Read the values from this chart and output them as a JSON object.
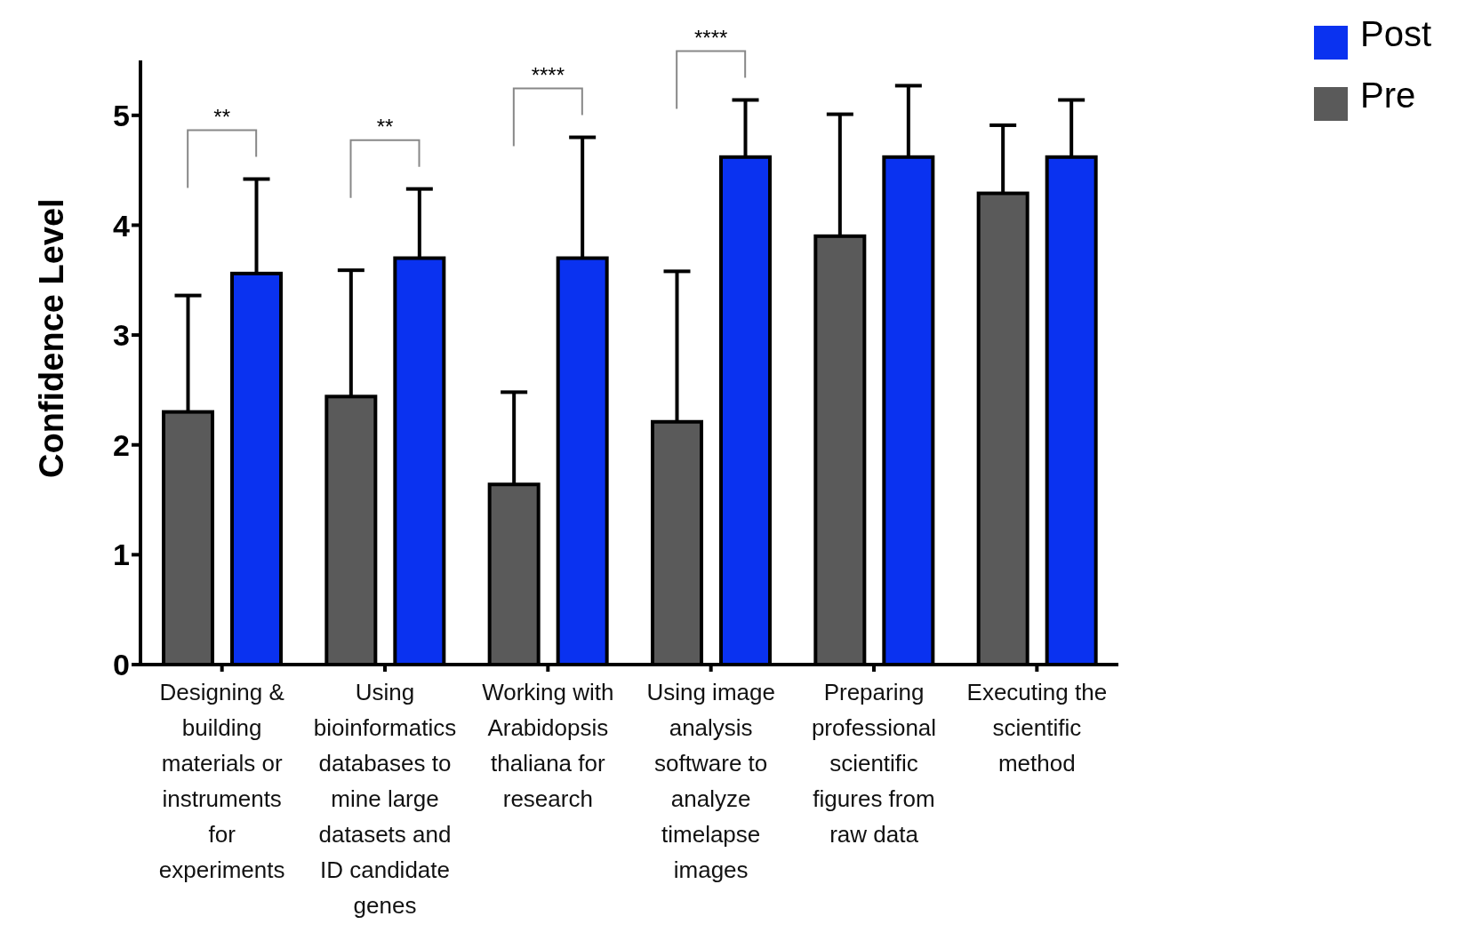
{
  "chart_data": {
    "type": "bar",
    "ylabel": "Confidence Level",
    "categories": [
      "Designing & building materials or instruments for experiments",
      "Using bioinformatics databases to mine large datasets and ID candidate genes",
      "Working with Arabidopsis thaliana for research",
      "Using image analysis software to analyze timelapse images",
      "Preparing professional scientific figures from raw data",
      "Executing the scientific method"
    ],
    "series": [
      {
        "name": "Pre",
        "color": "#5a5a5a",
        "values": [
          2.3,
          2.44,
          1.64,
          2.21,
          3.9,
          4.29
        ],
        "errors": [
          [
            2.3,
            3.36
          ],
          [
            2.44,
            3.59
          ],
          [
            1.64,
            2.48
          ],
          [
            2.21,
            3.58
          ],
          [
            3.9,
            5.01
          ],
          [
            4.29,
            4.91
          ]
        ]
      },
      {
        "name": "Post",
        "color": "#0a32f0",
        "values": [
          3.56,
          3.7,
          3.7,
          4.62,
          4.62,
          4.62
        ],
        "errors": [
          [
            3.56,
            4.42
          ],
          [
            3.7,
            4.33
          ],
          [
            3.7,
            4.8
          ],
          [
            4.62,
            5.14
          ],
          [
            4.62,
            5.27
          ],
          [
            4.62,
            5.14
          ]
        ]
      }
    ],
    "ylim": [
      0,
      5.5
    ],
    "yticks": [
      0,
      1,
      2,
      3,
      4,
      5
    ],
    "grid": false,
    "legend": "top right",
    "annotations": [
      "**",
      "**",
      "****",
      "****"
    ]
  }
}
